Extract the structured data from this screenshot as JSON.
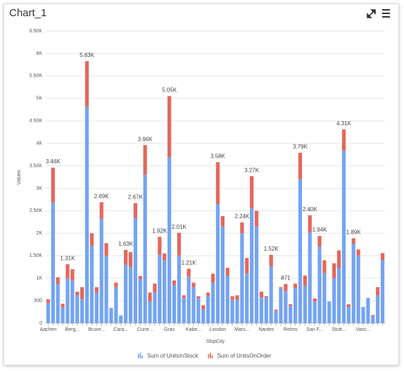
{
  "chart_data": {
    "type": "stacked-bar",
    "title": "Chart_1",
    "ylabel": "Values",
    "xlabel": "ShipCity",
    "categories": [
      "Aachen",
      null,
      null,
      null,
      null,
      "Berg...",
      null,
      null,
      null,
      null,
      "Bruxe...",
      null,
      null,
      null,
      null,
      "Cara...",
      null,
      null,
      null,
      null,
      "Cune...",
      null,
      null,
      null,
      null,
      "Graz",
      null,
      null,
      null,
      null,
      "Kabe...",
      null,
      null,
      null,
      null,
      "London",
      null,
      null,
      null,
      null,
      "Mars...",
      null,
      null,
      null,
      null,
      "Nantes",
      null,
      null,
      null,
      null,
      "Reims",
      null,
      null,
      null,
      null,
      "San F...",
      null,
      null,
      null,
      null,
      "Stutt...",
      null,
      null,
      null,
      null,
      "Vanc...",
      null,
      null,
      null,
      null
    ],
    "series": [
      {
        "name": "Sum of UnitsInStock",
        "color": "#74a4f2",
        "values": [
          450,
          2680,
          870,
          350,
          1000,
          950,
          620,
          530,
          4820,
          1720,
          680,
          2320,
          1500,
          340,
          800,
          170,
          1300,
          1250,
          2340,
          980,
          3300,
          480,
          680,
          1520,
          1400,
          3690,
          850,
          1500,
          560,
          1030,
          800,
          550,
          300,
          600,
          900,
          2650,
          2150,
          1050,
          520,
          520,
          2000,
          1100,
          2550,
          2150,
          580,
          560,
          1270,
          270,
          780,
          700,
          380,
          780,
          3200,
          830,
          2020,
          480,
          1700,
          1120,
          480,
          1000,
          1230,
          3840,
          350,
          1760,
          1500,
          360,
          560,
          150,
          620,
          1400
        ]
      },
      {
        "name": "Sum of UnitsOnOrder",
        "color": "#e3685c",
        "values": [
          80,
          780,
          150,
          80,
          310,
          250,
          80,
          270,
          1010,
          280,
          120,
          370,
          280,
          0,
          100,
          0,
          330,
          330,
          330,
          70,
          660,
          200,
          200,
          400,
          150,
          1360,
          100,
          510,
          60,
          180,
          100,
          50,
          100,
          80,
          200,
          930,
          230,
          180,
          80,
          100,
          240,
          350,
          720,
          350,
          120,
          40,
          250,
          30,
          20,
          171,
          40,
          100,
          590,
          230,
          380,
          70,
          240,
          280,
          0,
          330,
          390,
          470,
          70,
          130,
          140,
          0,
          0,
          30,
          180,
          160
        ]
      }
    ],
    "stack_labels": [
      null,
      "3.46K",
      null,
      null,
      "1.31K",
      null,
      null,
      null,
      "5.83K",
      null,
      null,
      "2.69K",
      null,
      null,
      null,
      null,
      "1.63K",
      null,
      "2.67K",
      null,
      "3.96K",
      null,
      null,
      "1.92K",
      null,
      "5.05K",
      null,
      "2.01K",
      null,
      "1.21K",
      null,
      null,
      null,
      null,
      null,
      "3.58K",
      null,
      null,
      null,
      null,
      "2.24K",
      null,
      "3.27K",
      null,
      null,
      null,
      "1.52K",
      null,
      null,
      "871",
      null,
      null,
      "3.79K",
      null,
      "2.40K",
      null,
      "1.94K",
      null,
      null,
      null,
      null,
      "4.31K",
      null,
      "1.89K",
      null,
      null,
      null,
      null,
      null,
      null
    ],
    "ylim": [
      0,
      6500
    ],
    "yticks": [
      0,
      500,
      {
        "value": 1000,
        "label": "1K"
      },
      {
        "value": 1500,
        "label": "1.50K"
      },
      {
        "value": 2000,
        "label": "2K"
      },
      {
        "value": 2500,
        "label": "2.50K"
      },
      {
        "value": 3000,
        "label": "3K"
      },
      {
        "value": 3500,
        "label": "3.50K"
      },
      {
        "value": 4000,
        "label": "4K"
      },
      {
        "value": 4500,
        "label": "4.50K"
      },
      {
        "value": 5000,
        "label": "5K"
      },
      {
        "value": 5500,
        "label": "5.50K"
      },
      {
        "value": 6000,
        "label": "6K"
      },
      {
        "value": 6500,
        "label": "6.50K"
      }
    ],
    "grid": true,
    "legend": "bottom"
  }
}
